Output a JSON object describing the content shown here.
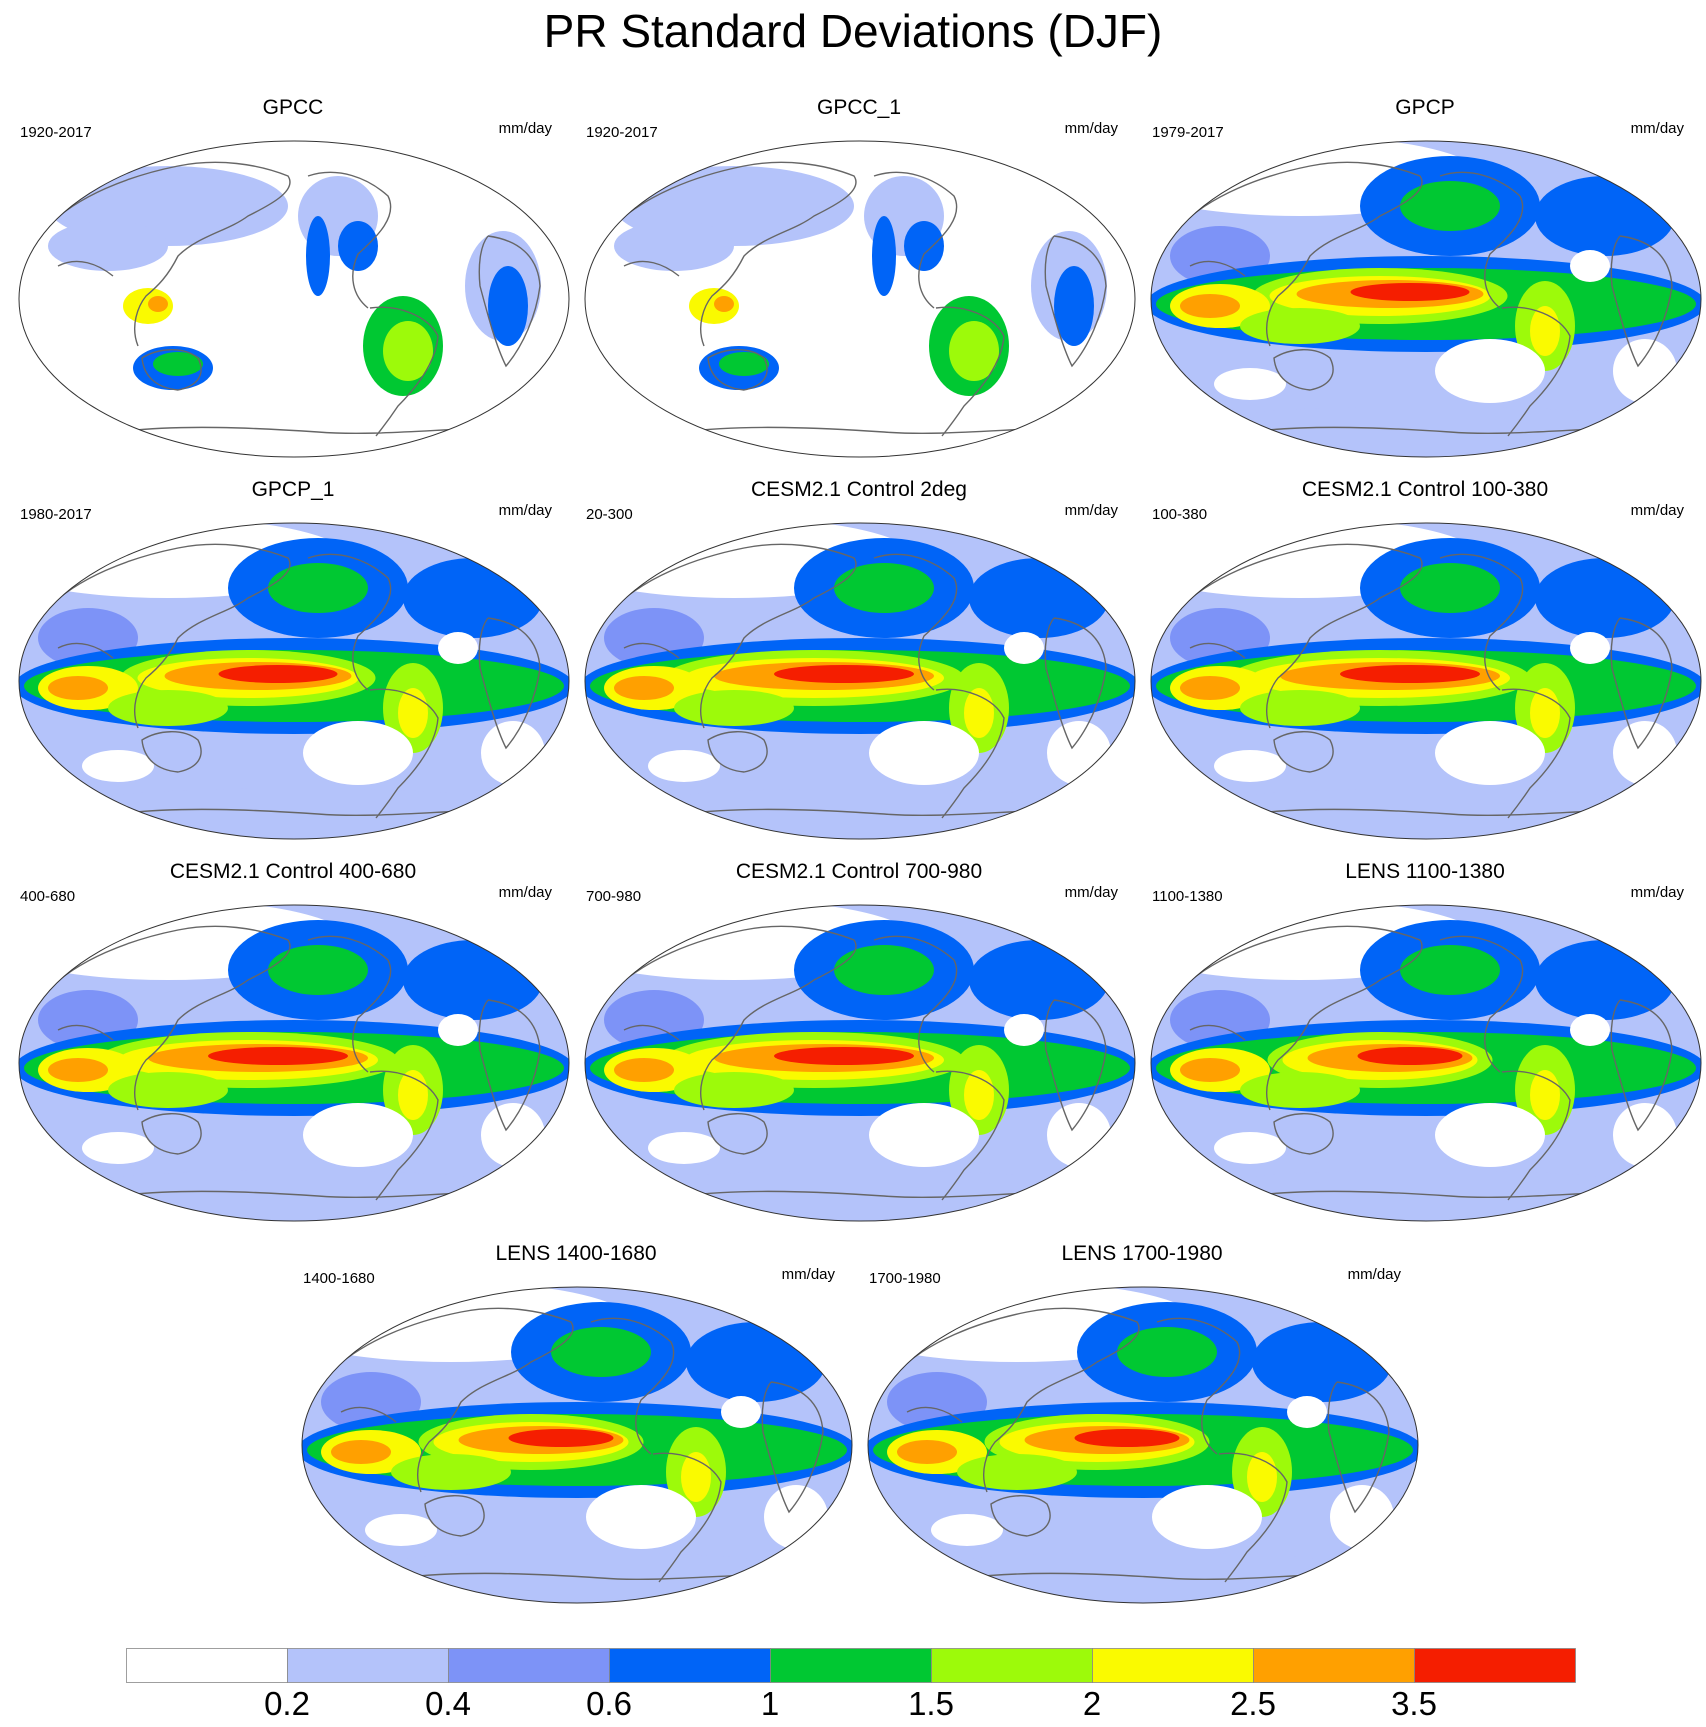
{
  "title": "PR Standard Deviations (DJF)",
  "units": "mm/day",
  "colors": [
    "#ffffff",
    "#b4c3fa",
    "#7d93f7",
    "#0064f7",
    "#00c832",
    "#9dfa0a",
    "#fafa00",
    "#ffa000",
    "#f51e00"
  ],
  "colorbar_labels": [
    "0.2",
    "0.4",
    "0.6",
    "1",
    "1.5",
    "2",
    "2.5",
    "3.5"
  ],
  "panels": [
    {
      "name": "GPCC",
      "years": "1920-2017",
      "pattern": "land_only"
    },
    {
      "name": "GPCC_1",
      "years": "1920-2017",
      "pattern": "land_only"
    },
    {
      "name": "GPCP",
      "years": "1979-2017",
      "pattern": "obs"
    },
    {
      "name": "GPCP_1",
      "years": "1980-2017",
      "pattern": "obs"
    },
    {
      "name": "CESM2.1 Control 2deg",
      "years": "20-300",
      "pattern": "model"
    },
    {
      "name": "CESM2.1 Control 100-380",
      "years": "100-380",
      "pattern": "model"
    },
    {
      "name": "CESM2.1 Control 400-680",
      "years": "400-680",
      "pattern": "model"
    },
    {
      "name": "CESM2.1 Control 700-980",
      "years": "700-980",
      "pattern": "model"
    },
    {
      "name": "LENS 1100-1380",
      "years": "1100-1380",
      "pattern": "lens"
    },
    {
      "name": "LENS 1400-1680",
      "years": "1400-1680",
      "pattern": "lens"
    },
    {
      "name": "LENS 1700-1980",
      "years": "1700-1980",
      "pattern": "lens"
    }
  ]
}
